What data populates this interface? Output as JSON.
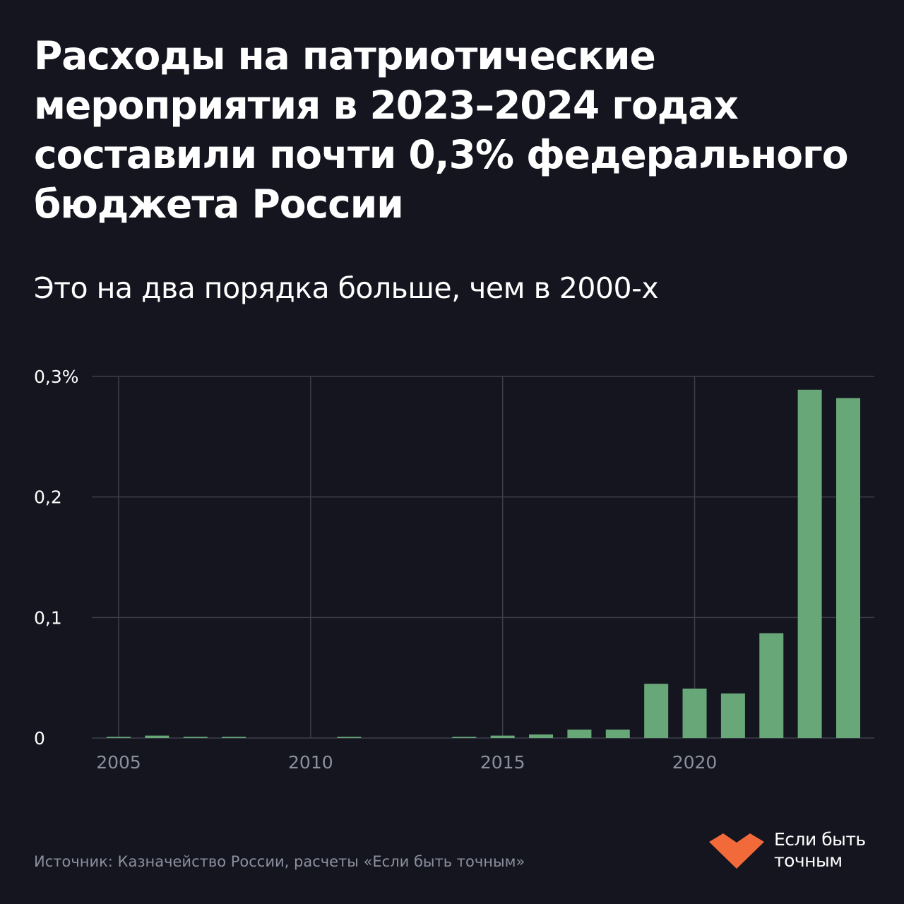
{
  "header": {
    "title": "Расходы на патриотические мероприятия в 2023–2024 годах составили почти 0,3% федерального бюджета России",
    "subtitle": "Это на два порядка больше, чем в 2000-х"
  },
  "footer": {
    "source": "Источник: Казначейство России, расчеты «Если быть точным»",
    "brand_line1": "Если быть",
    "brand_line2": "точным"
  },
  "colors": {
    "background": "#14151f",
    "bar": "#68a878",
    "grid": "#3c3e4a",
    "text": "#ffffff",
    "muted_text": "#8c8f9e",
    "brand": "#f26a3a"
  },
  "chart_data": {
    "type": "bar",
    "x": [
      2005,
      2006,
      2007,
      2008,
      2009,
      2010,
      2011,
      2012,
      2013,
      2014,
      2015,
      2016,
      2017,
      2018,
      2019,
      2020,
      2021,
      2022,
      2023,
      2024
    ],
    "values": [
      0.001,
      0.002,
      0.001,
      0.001,
      0,
      0,
      0.001,
      0,
      0,
      0.001,
      0.002,
      0.003,
      0.007,
      0.007,
      0.045,
      0.041,
      0.037,
      0.087,
      0.289,
      0.282
    ],
    "ylim": [
      0,
      0.3
    ],
    "y_ticks": [
      {
        "value": 0,
        "label": "0"
      },
      {
        "value": 0.1,
        "label": "0,1"
      },
      {
        "value": 0.2,
        "label": "0,2"
      },
      {
        "value": 0.3,
        "label": "0,3%"
      }
    ],
    "x_ticks": [
      {
        "value": 2005,
        "label": "2005"
      },
      {
        "value": 2010,
        "label": "2010"
      },
      {
        "value": 2015,
        "label": "2015"
      },
      {
        "value": 2020,
        "label": "2020"
      }
    ],
    "xlabel": "",
    "ylabel": "",
    "grid": true,
    "legend": "none"
  }
}
